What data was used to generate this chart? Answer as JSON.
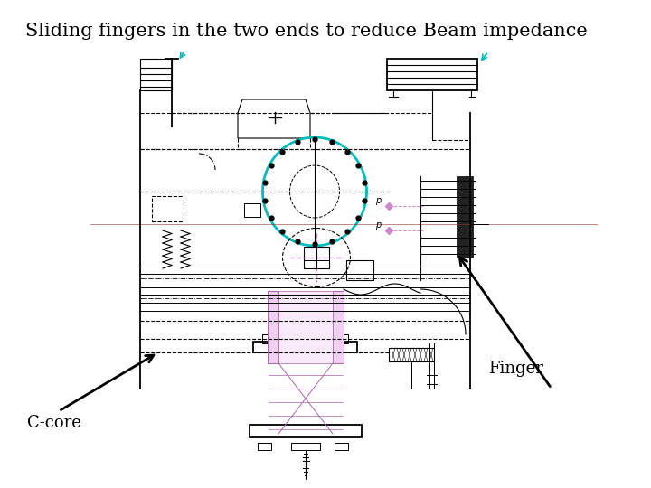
{
  "title": "Sliding fingers in the two ends to reduce Beam impedance",
  "title_fontsize": 15,
  "label_finger": "Finger",
  "label_ccore": "C-core",
  "bg_color": "#ffffff",
  "line_color": "#000000",
  "cyan_color": "#00bbbb",
  "pink_color": "#cc88cc",
  "purple_color": "#aa66aa",
  "red_color": "#993333",
  "darkviolet": "#9966aa"
}
